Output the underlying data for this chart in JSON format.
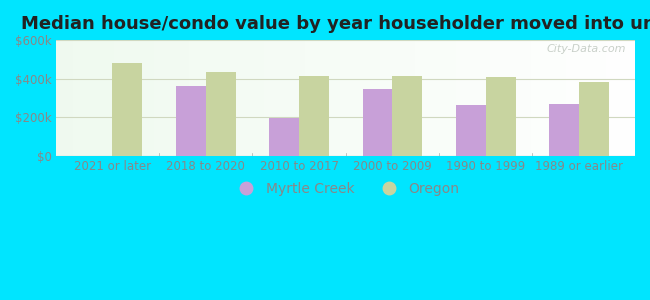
{
  "title": "Median house/condo value by year householder moved into unit",
  "categories": [
    "2021 or later",
    "2018 to 2020",
    "2010 to 2017",
    "2000 to 2009",
    "1990 to 1999",
    "1989 or earlier"
  ],
  "myrtle_creek": [
    null,
    360000,
    195000,
    345000,
    265000,
    270000
  ],
  "oregon": [
    480000,
    435000,
    415000,
    415000,
    410000,
    385000
  ],
  "myrtle_creek_color": "#c8a0d8",
  "oregon_color": "#c8d4a0",
  "background_outer": "#00e5ff",
  "grid_color": "#d0d8c0",
  "text_color": "#888888",
  "ylim": [
    0,
    600000
  ],
  "yticks": [
    0,
    200000,
    400000,
    600000
  ],
  "ytick_labels": [
    "$0",
    "$200k",
    "$400k",
    "$600k"
  ],
  "watermark_text": "City-Data.com",
  "legend_labels": [
    "Myrtle Creek",
    "Oregon"
  ],
  "bar_width": 0.32,
  "title_fontsize": 13,
  "tick_fontsize": 8.5,
  "legend_fontsize": 10
}
